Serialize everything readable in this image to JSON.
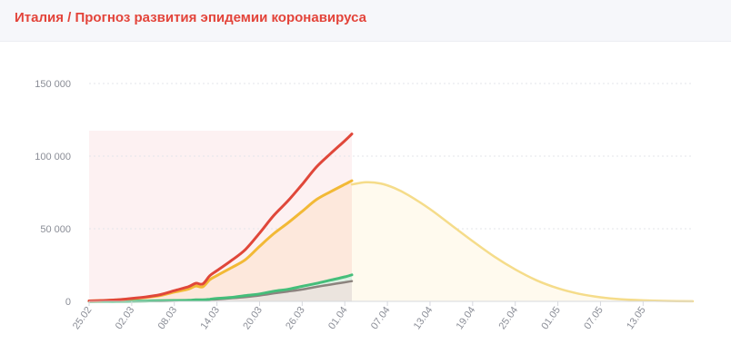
{
  "header": {
    "title": "Италия / Прогноз развития эпидемии коронавируса"
  },
  "colors": {
    "total": "#e0473a",
    "active": "#f2b936",
    "recovered": "#45be7a",
    "deaths": "#8c837e",
    "forecast": "#f5dc8a",
    "forecast_fill": "#fffaee",
    "history_fill": "#fde8dc",
    "history_bg": "#fdf1f2",
    "grid": "#e3e5ea",
    "axis": "#d6d8de"
  },
  "chart_data": {
    "type": "line",
    "title": "Италия / Прогноз развития эпидемии коронавируса",
    "xlabel": "",
    "ylabel": "",
    "ylim": [
      0,
      150000
    ],
    "yticks": [
      0,
      50000,
      100000,
      150000
    ],
    "ytick_labels": [
      "0",
      "50 000",
      "100 000",
      "150 000"
    ],
    "xlim": [
      "25.02",
      "20.05"
    ],
    "xtick_labels": [
      "25.02",
      "02.03",
      "08.03",
      "14.03",
      "20.03",
      "26.03",
      "01.04",
      "07.04",
      "13.04",
      "19.04",
      "25.04",
      "01.05",
      "07.05",
      "13.05"
    ],
    "grid": true,
    "legend": "none",
    "forecast_start": "02.04",
    "series": [
      {
        "key": "total",
        "x": [
          "25.02",
          "27.02",
          "29.02",
          "02.03",
          "04.03",
          "06.03",
          "08.03",
          "10.03",
          "11.03",
          "12.03",
          "13.03",
          "14.03",
          "16.03",
          "18.03",
          "20.03",
          "22.03",
          "24.03",
          "26.03",
          "28.03",
          "30.03",
          "01.04",
          "02.04"
        ],
        "values": [
          300,
          650,
          1130,
          2040,
          3090,
          4640,
          7380,
          10150,
          12460,
          12000,
          17700,
          21160,
          27980,
          35710,
          47020,
          59140,
          69180,
          80590,
          92470,
          101740,
          110570,
          115240
        ]
      },
      {
        "key": "active",
        "x": [
          "25.02",
          "27.02",
          "29.02",
          "02.03",
          "04.03",
          "06.03",
          "08.03",
          "10.03",
          "11.03",
          "12.03",
          "13.03",
          "14.03",
          "16.03",
          "18.03",
          "20.03",
          "22.03",
          "24.03",
          "26.03",
          "28.03",
          "30.03",
          "01.04",
          "02.04"
        ],
        "values": [
          290,
          630,
          1050,
          1830,
          2710,
          3920,
          6390,
          8510,
          10590,
          10000,
          14950,
          17750,
          23070,
          28710,
          37860,
          46640,
          54030,
          62010,
          70070,
          75530,
          80570,
          83050
        ]
      },
      {
        "key": "recovered",
        "x": [
          "25.02",
          "27.02",
          "29.02",
          "02.03",
          "04.03",
          "06.03",
          "08.03",
          "10.03",
          "11.03",
          "12.03",
          "13.03",
          "14.03",
          "16.03",
          "18.03",
          "20.03",
          "22.03",
          "24.03",
          "26.03",
          "28.03",
          "30.03",
          "01.04",
          "02.04"
        ],
        "values": [
          1,
          45,
          50,
          160,
          280,
          520,
          620,
          720,
          1050,
          1100,
          1450,
          1970,
          2750,
          4030,
          5130,
          7020,
          8330,
          10360,
          12380,
          14620,
          16850,
          18280
        ]
      },
      {
        "key": "deaths",
        "x": [
          "25.02",
          "27.02",
          "29.02",
          "02.03",
          "04.03",
          "06.03",
          "08.03",
          "10.03",
          "11.03",
          "12.03",
          "13.03",
          "14.03",
          "16.03",
          "18.03",
          "20.03",
          "22.03",
          "24.03",
          "26.03",
          "28.03",
          "30.03",
          "01.04",
          "02.04"
        ],
        "values": [
          10,
          17,
          29,
          52,
          107,
          197,
          366,
          631,
          827,
          1016,
          1266,
          1441,
          2158,
          2978,
          4032,
          5476,
          6820,
          8165,
          10023,
          11591,
          13155,
          13915
        ]
      },
      {
        "key": "forecast",
        "x": [
          "02.04",
          "04.04",
          "06.04",
          "08.04",
          "10.04",
          "13.04",
          "16.04",
          "19.04",
          "22.04",
          "25.04",
          "28.04",
          "01.05",
          "04.05",
          "07.05",
          "10.05",
          "13.05",
          "16.05",
          "20.05"
        ],
        "values": [
          80500,
          82000,
          81200,
          78000,
          73000,
          63500,
          52500,
          41500,
          31000,
          22000,
          14500,
          9000,
          5200,
          2800,
          1400,
          700,
          300,
          80
        ]
      }
    ]
  }
}
